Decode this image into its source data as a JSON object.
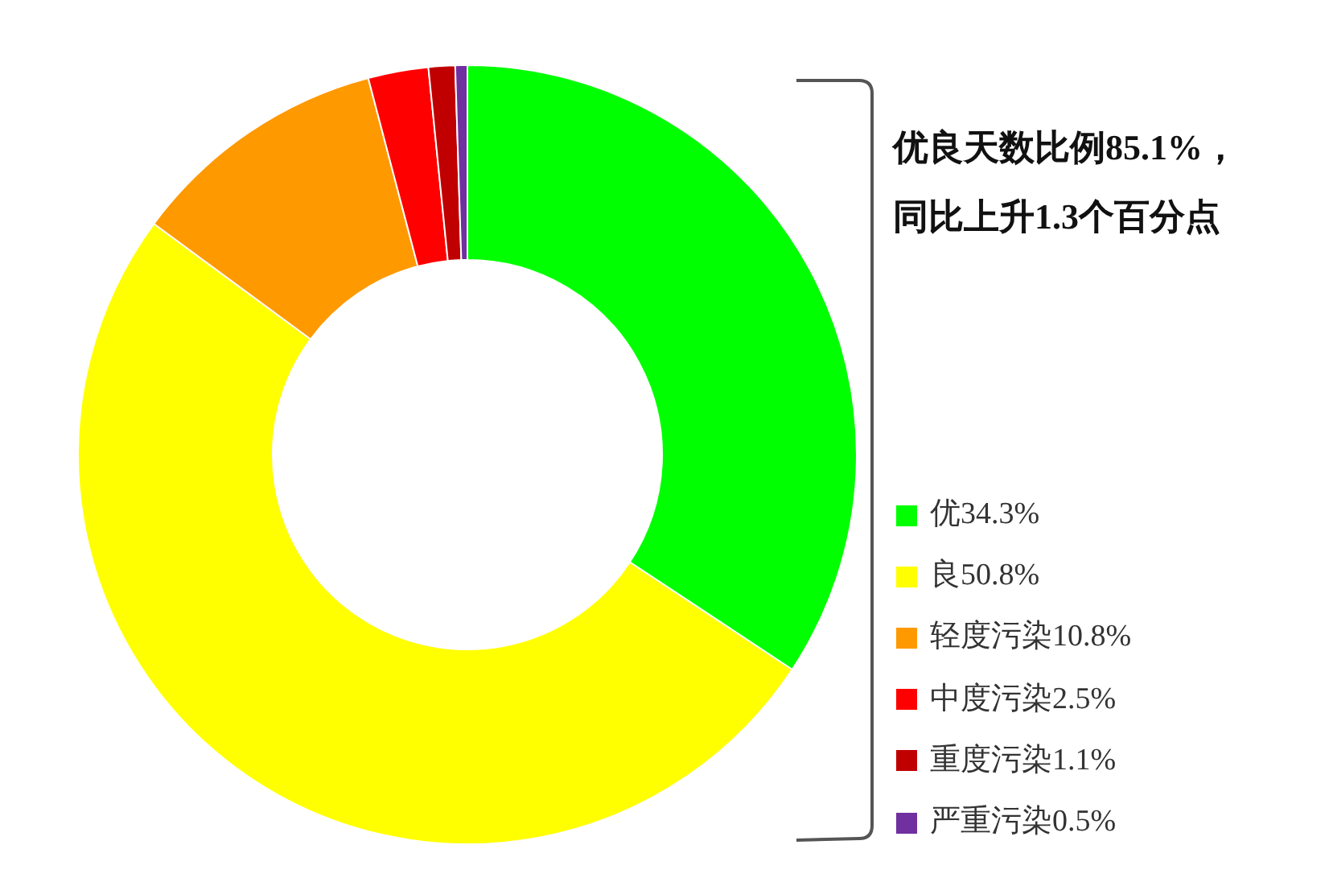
{
  "chart_data": {
    "type": "donut",
    "categories": [
      "优34.3%",
      "良50.8%",
      "轻度污染10.8%",
      "中度污染2.5%",
      "重度污染1.1%",
      "严重污染0.5%"
    ],
    "values": [
      34.3,
      50.8,
      10.8,
      2.5,
      1.1,
      0.5
    ],
    "colors": [
      "#00ff00",
      "#ffff00",
      "#ff9900",
      "#ff0000",
      "#c00000",
      "#7030a0"
    ],
    "annotations": [
      "优良天数比例85.1%，",
      "同比上升1.3个百分点"
    ],
    "legend": "right"
  }
}
